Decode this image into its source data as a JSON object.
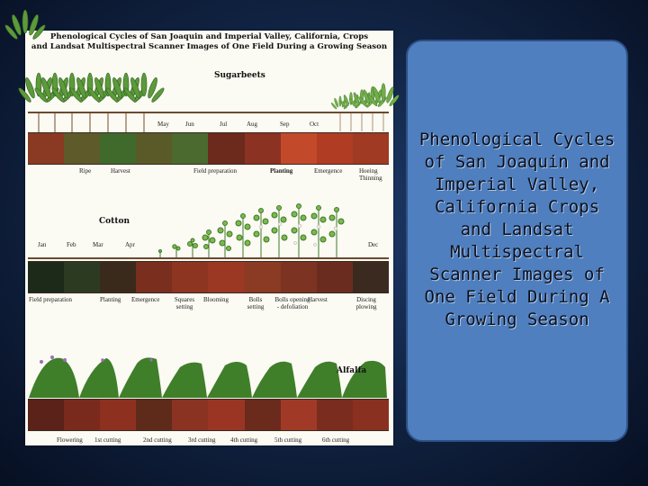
{
  "figure": {
    "title_line1": "Phenological Cycles of San Joaquin and Imperial Valley, California, Crops",
    "title_line2": "and Landsat Multispectral Scanner Images of One Field During a Growing Season",
    "sugarbeets": {
      "label": "Sugarbeets",
      "months": [
        "May",
        "Jun",
        "Jul",
        "Aug",
        "Sep",
        "Oct"
      ],
      "stages": [
        "Ripe",
        "Harvest",
        "Field preparation",
        "Planting",
        "Emergence",
        "Hoeing Thinning"
      ],
      "strip_colors": [
        "#8a3a22",
        "#5f5a2a",
        "#3f6a2c",
        "#5a5a28",
        "#4a6a30",
        "#6b2a1c",
        "#8b3222",
        "#c24a2a",
        "#b03c24",
        "#a03a22"
      ]
    },
    "cotton": {
      "label": "Cotton",
      "months": [
        "Jan",
        "Feb",
        "Mar",
        "Apr",
        "Dec"
      ],
      "stages": [
        "Field preparation",
        "Planting",
        "Emergence",
        "Squares setting",
        "Blooming",
        "Bolls setting",
        "Bolls opening - defoliation",
        "Harvest",
        "Discing plowing"
      ],
      "strip_colors": [
        "#1d2a1a",
        "#2d3a22",
        "#3a2a1c",
        "#7a2e1e",
        "#8e3522",
        "#9a3824",
        "#8b3a24",
        "#7c3322",
        "#6a2c1e",
        "#3b2a20"
      ]
    },
    "alfalfa": {
      "label": "Alfalfa",
      "stages": [
        "Flowering",
        "1st cutting",
        "2nd cutting",
        "3rd cutting",
        "4th cutting",
        "5th cutting",
        "6th cutting"
      ],
      "strip_colors": [
        "#5a2218",
        "#7a2a1c",
        "#8e3020",
        "#5e2a1a",
        "#8a3322",
        "#9a3524",
        "#6a2a1c",
        "#a03a26",
        "#7a2c1e",
        "#8a3020"
      ]
    }
  },
  "panel": {
    "text": "Phenological Cycles of San Joaquin and Imperial Valley, California Crops and Landsat Multispectral Scanner Images of One Field During A Growing Season"
  }
}
